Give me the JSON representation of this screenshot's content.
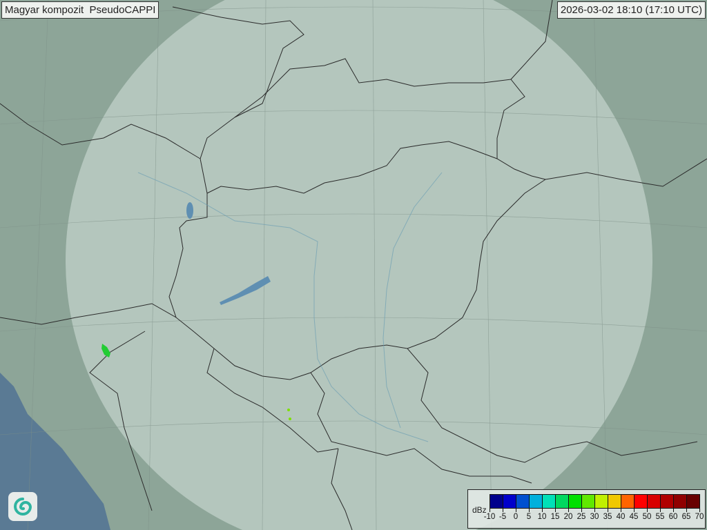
{
  "header": {
    "title": "Magyar kompozit  PseudoCAPPI",
    "timestamp": "2026-03-02 18:10 (17:10 UTC)"
  },
  "legend": {
    "unit": "dBz",
    "ticks": [
      "-10",
      "-5",
      "0",
      "5",
      "10",
      "15",
      "20",
      "25",
      "30",
      "35",
      "40",
      "45",
      "50",
      "55",
      "60",
      "65",
      "70"
    ],
    "colors": [
      "#00008c",
      "#0000cc",
      "#0050d0",
      "#00b0dc",
      "#00e0b8",
      "#00d860",
      "#00e000",
      "#60e800",
      "#c0f000",
      "#f0c800",
      "#ff6400",
      "#ff0000",
      "#d80000",
      "#b00000",
      "#900000",
      "#680000"
    ]
  },
  "map": {
    "land_color": "#8da598",
    "radar_coverage_color": "#c9d8d0",
    "sea_color": "#5a7a94",
    "echo_color": "#22cc33"
  },
  "logo": {
    "icon": "met-service-swirl-logo"
  }
}
